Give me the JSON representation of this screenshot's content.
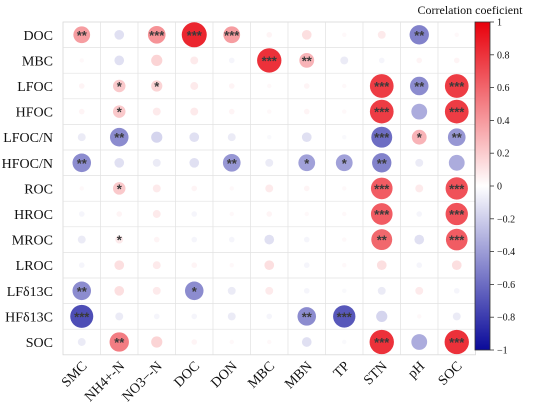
{
  "chart_data": {
    "type": "heatmap",
    "subtype": "correlation-bubble-matrix",
    "rows": [
      "DOC",
      "MBC",
      "LFOC",
      "HFOC",
      "LFOC/N",
      "HFOC/N",
      "ROC",
      "HROC",
      "MROC",
      "LROC",
      "LFδ13C",
      "HFδ13C",
      "SOC"
    ],
    "columns": [
      "SMC",
      "NH4+-N",
      "NO3−-N",
      "DOC",
      "DON",
      "MBC",
      "MBN",
      "TP",
      "STN",
      "pH",
      "SOC"
    ],
    "values": [
      [
        0.45,
        -0.15,
        0.5,
        1.0,
        0.45,
        0.05,
        0.15,
        0.03,
        0.1,
        -0.6,
        0.03
      ],
      [
        0.03,
        -0.15,
        0.2,
        0.1,
        -0.05,
        0.95,
        0.35,
        -0.1,
        -0.05,
        0.05,
        0.05
      ],
      [
        0.05,
        0.25,
        0.2,
        0.1,
        0.05,
        0.03,
        0.05,
        0.03,
        0.9,
        -0.55,
        0.9
      ],
      [
        0.05,
        0.25,
        0.1,
        0.1,
        0.05,
        0.03,
        0.05,
        0.03,
        0.9,
        -0.4,
        0.9
      ],
      [
        -0.1,
        -0.55,
        -0.2,
        -0.15,
        -0.1,
        -0.03,
        -0.15,
        -0.03,
        -0.7,
        0.35,
        -0.5
      ],
      [
        -0.55,
        -0.15,
        -0.1,
        -0.15,
        -0.5,
        -0.1,
        -0.45,
        -0.45,
        -0.6,
        -0.1,
        -0.4
      ],
      [
        0.03,
        0.25,
        0.1,
        0.05,
        0.03,
        0.1,
        0.05,
        0.03,
        0.75,
        0.1,
        0.8
      ],
      [
        -0.05,
        0.05,
        0.1,
        -0.05,
        0.03,
        0.05,
        0.03,
        0.03,
        0.75,
        -0.05,
        0.8
      ],
      [
        -0.1,
        0.1,
        0.05,
        -0.05,
        -0.05,
        -0.15,
        -0.05,
        0.03,
        0.7,
        -0.15,
        0.75
      ],
      [
        -0.05,
        0.15,
        0.1,
        0.05,
        0.03,
        0.15,
        -0.05,
        0.03,
        0.15,
        -0.05,
        0.15
      ],
      [
        -0.55,
        0.15,
        0.1,
        -0.55,
        -0.1,
        0.1,
        -0.05,
        -0.03,
        -0.1,
        0.1,
        -0.05
      ],
      [
        -0.85,
        -0.1,
        -0.05,
        -0.05,
        -0.1,
        -0.05,
        -0.55,
        -0.8,
        -0.2,
        0.03,
        -0.1
      ],
      [
        -0.1,
        0.6,
        0.2,
        0.05,
        0.03,
        0.03,
        -0.15,
        -0.03,
        0.95,
        -0.4,
        0.95
      ]
    ],
    "significance": [
      [
        "**",
        "",
        "***",
        "***",
        "***",
        "",
        "",
        "",
        "",
        "**",
        ""
      ],
      [
        "",
        "",
        "",
        "",
        "",
        "***",
        "**",
        "",
        "",
        "",
        ""
      ],
      [
        "",
        "*",
        "*",
        "",
        "",
        "",
        "",
        "",
        "***",
        "**",
        "***"
      ],
      [
        "",
        "*",
        "",
        "",
        "",
        "",
        "",
        "",
        "***",
        "",
        "***"
      ],
      [
        "",
        "**",
        "",
        "",
        "",
        "",
        "",
        "",
        "***",
        "*",
        "**"
      ],
      [
        "**",
        "",
        "",
        "",
        "**",
        "",
        "*",
        "*",
        "**",
        "",
        ""
      ],
      [
        "",
        "*",
        "",
        "",
        "",
        "",
        "",
        "",
        "***",
        "",
        "***"
      ],
      [
        "",
        "",
        "",
        "",
        "",
        "",
        "",
        "",
        "***",
        "",
        "***"
      ],
      [
        "",
        "*",
        "",
        "",
        "",
        "",
        "",
        "",
        "**",
        "",
        "***"
      ],
      [
        "",
        "",
        "",
        "",
        "",
        "",
        "",
        "",
        "",
        "",
        ""
      ],
      [
        "**",
        "",
        "",
        "*",
        "",
        "",
        "",
        "",
        "",
        "",
        ""
      ],
      [
        "***",
        "",
        "",
        "",
        "",
        "",
        "**",
        "***",
        "",
        "",
        ""
      ],
      [
        "",
        "**",
        "",
        "",
        "",
        "",
        "",
        "",
        "***",
        "",
        "***"
      ]
    ],
    "colorbar": {
      "title": "Correlation coeficient",
      "min": -1,
      "max": 1,
      "ticks": [
        "1",
        "0.8",
        "0.6",
        "0.4",
        "0.2",
        "0",
        "−0.2",
        "−0.4",
        "−0.6",
        "−0.8",
        "−1"
      ],
      "colors": {
        "positive": "#e8000b",
        "neutral": "#ffffff",
        "negative": "#0a0a9a"
      }
    },
    "grid": true
  }
}
